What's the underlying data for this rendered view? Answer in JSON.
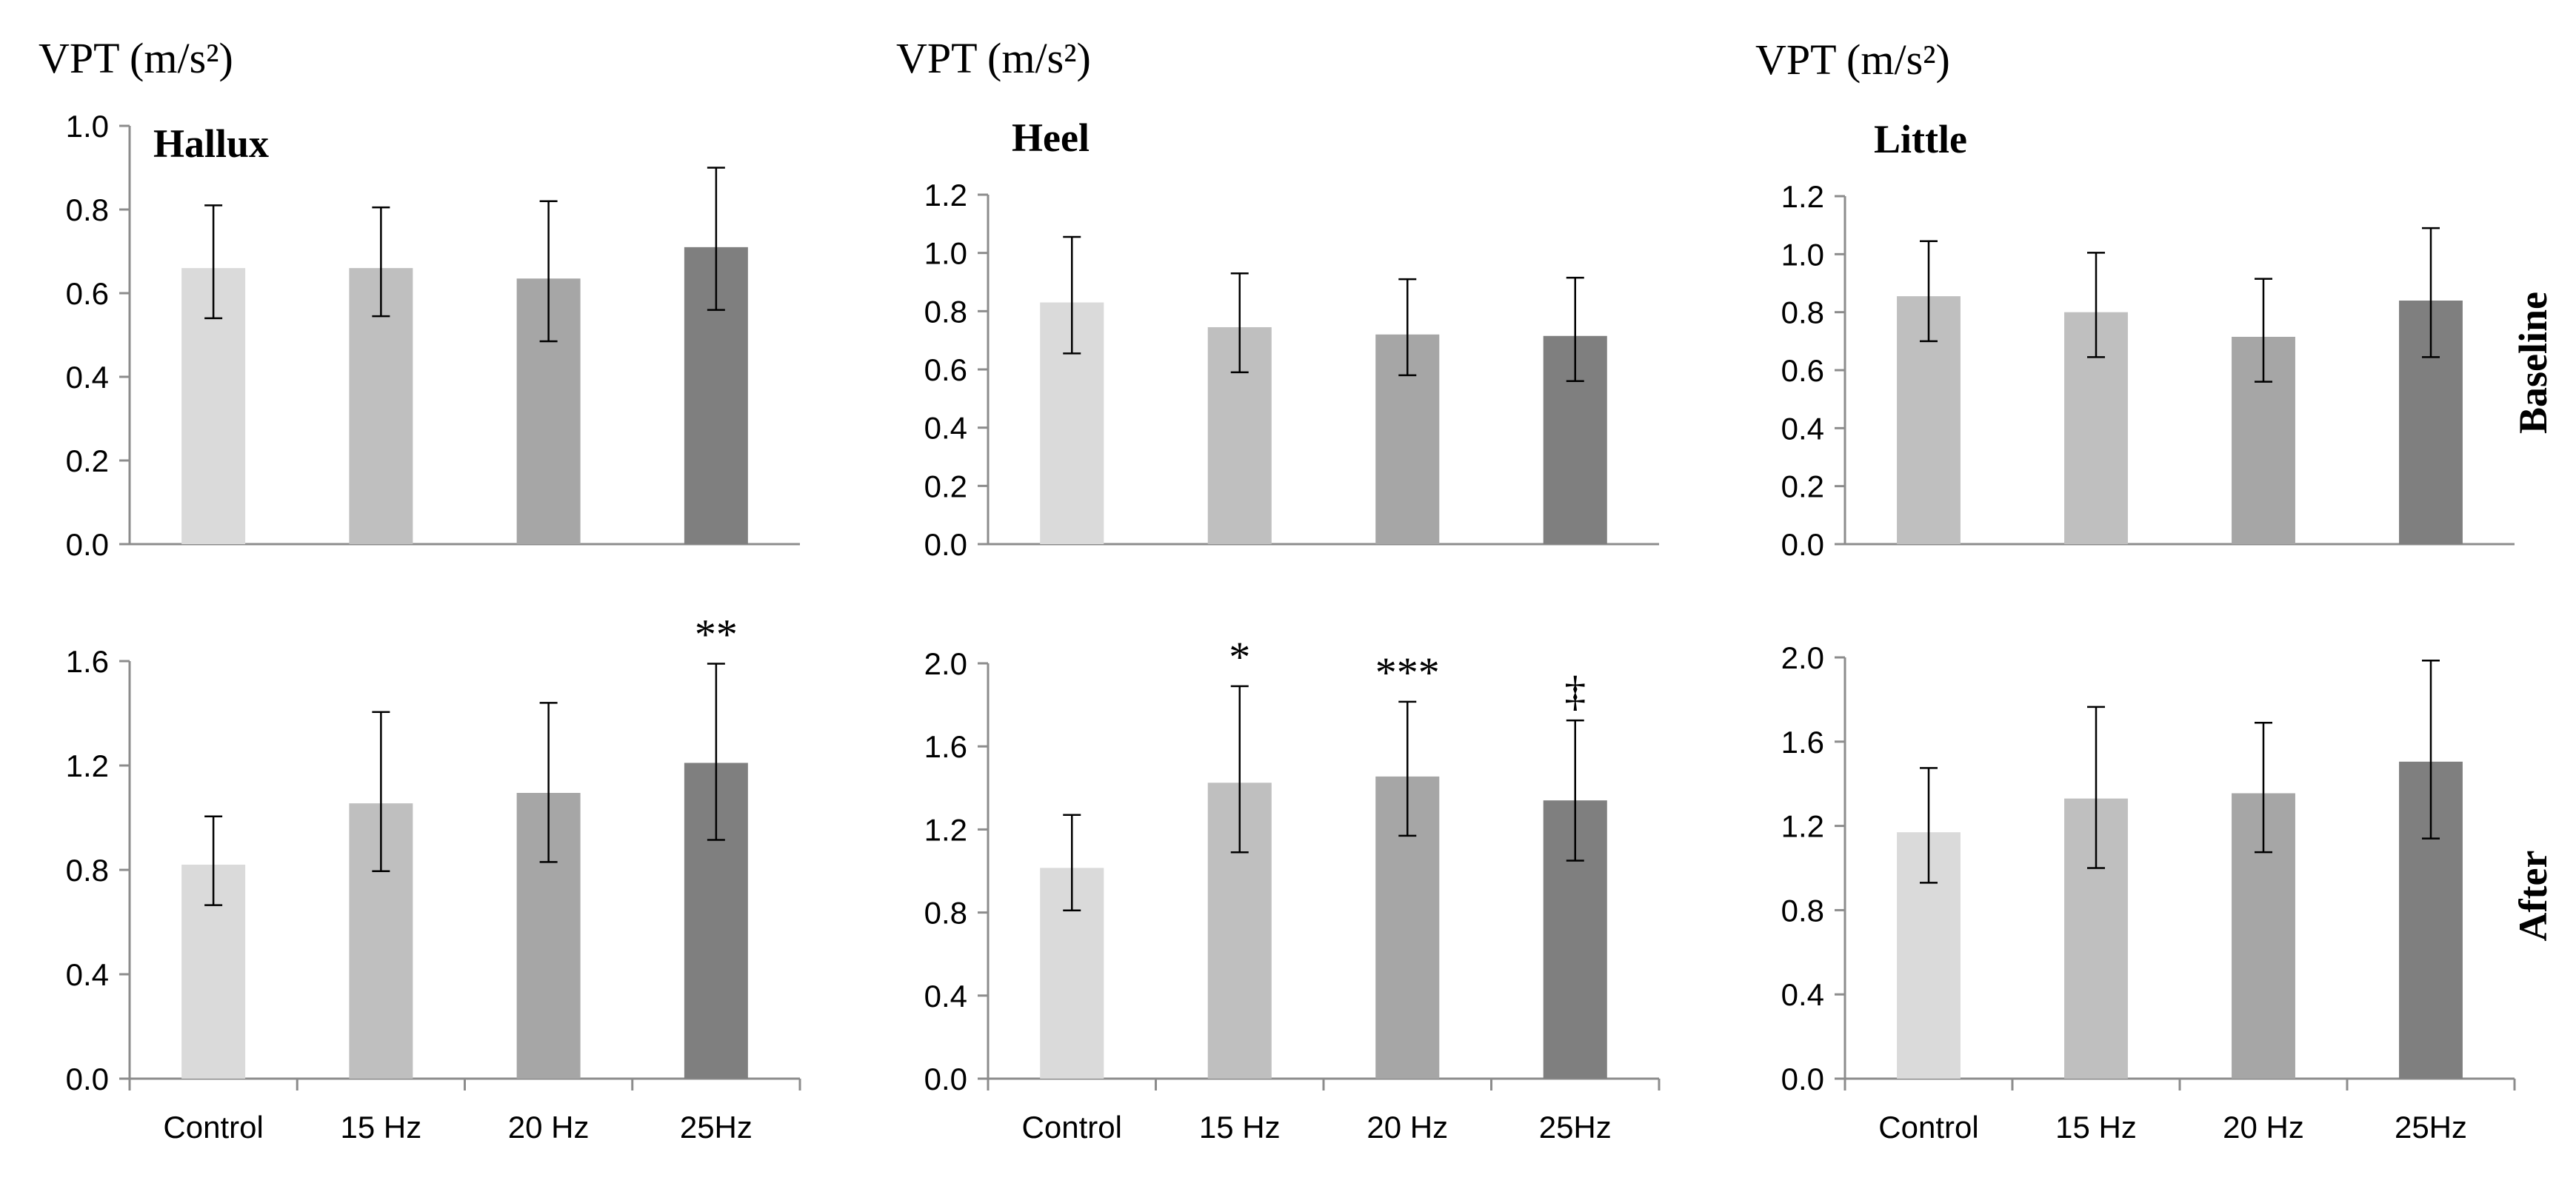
{
  "figure": {
    "row_labels": [
      "Baseline",
      "After"
    ]
  },
  "chart_data": [
    {
      "type": "bar",
      "row": "Baseline",
      "title": "Hallux",
      "ylabel": "VPT (m/s²)",
      "xlabel": "",
      "categories": [
        "Control",
        "15 Hz",
        "20 Hz",
        "25Hz"
      ],
      "show_category_labels": false,
      "values": [
        0.66,
        0.66,
        0.635,
        0.71
      ],
      "err_low": [
        0.54,
        0.545,
        0.485,
        0.56
      ],
      "err_high": [
        0.81,
        0.805,
        0.82,
        0.9
      ],
      "annotations": [
        "",
        "",
        "",
        ""
      ],
      "ylim": [
        0,
        1.0
      ],
      "yticks": [
        0,
        0.2,
        0.4,
        0.6,
        0.8,
        1.0
      ],
      "tick_format": 1,
      "colors": [
        "#dadada",
        "#bfbfbf",
        "#a6a6a6",
        "#7f7f7f"
      ]
    },
    {
      "type": "bar",
      "row": "Baseline",
      "title": "Heel",
      "ylabel": "VPT (m/s²)",
      "xlabel": "",
      "categories": [
        "Control",
        "15 Hz",
        "20 Hz",
        "25Hz"
      ],
      "show_category_labels": false,
      "values": [
        0.83,
        0.745,
        0.72,
        0.715
      ],
      "err_low": [
        0.655,
        0.59,
        0.58,
        0.56
      ],
      "err_high": [
        1.055,
        0.93,
        0.91,
        0.915
      ],
      "annotations": [
        "",
        "",
        "",
        ""
      ],
      "ylim": [
        0,
        1.2
      ],
      "yticks": [
        0,
        0.2,
        0.4,
        0.6,
        0.8,
        1.0,
        1.2
      ],
      "tick_format": 1,
      "colors": [
        "#dadada",
        "#bfbfbf",
        "#a6a6a6",
        "#7f7f7f"
      ]
    },
    {
      "type": "bar",
      "row": "Baseline",
      "title": "Little",
      "ylabel": "VPT (m/s²)",
      "xlabel": "",
      "categories": [
        "Control",
        "15 Hz",
        "20 Hz",
        "25Hz"
      ],
      "show_category_labels": false,
      "values": [
        0.855,
        0.8,
        0.715,
        0.84
      ],
      "err_low": [
        0.7,
        0.645,
        0.56,
        0.645
      ],
      "err_high": [
        1.045,
        1.005,
        0.915,
        1.09
      ],
      "annotations": [
        "",
        "",
        "",
        ""
      ],
      "ylim": [
        0,
        1.2
      ],
      "yticks": [
        0,
        0.2,
        0.4,
        0.6,
        0.8,
        1.0,
        1.2
      ],
      "tick_format": 1,
      "colors": [
        "#bfbfbf",
        "#bfbfbf",
        "#a6a6a6",
        "#7f7f7f"
      ]
    },
    {
      "type": "bar",
      "row": "After",
      "title": "",
      "ylabel": "",
      "xlabel": "",
      "categories": [
        "Control",
        "15 Hz",
        "20 Hz",
        "25Hz"
      ],
      "show_category_labels": true,
      "values": [
        0.82,
        1.055,
        1.095,
        1.21
      ],
      "err_low": [
        0.665,
        0.795,
        0.83,
        0.915
      ],
      "err_high": [
        1.005,
        1.405,
        1.44,
        1.59
      ],
      "annotations": [
        "",
        "",
        "",
        "**"
      ],
      "ylim": [
        0,
        1.6
      ],
      "yticks": [
        0,
        0.4,
        0.8,
        1.2,
        1.6
      ],
      "tick_format": 1,
      "colors": [
        "#dadada",
        "#bfbfbf",
        "#a6a6a6",
        "#7f7f7f"
      ]
    },
    {
      "type": "bar",
      "row": "After",
      "title": "",
      "ylabel": "",
      "xlabel": "",
      "categories": [
        "Control",
        "15 Hz",
        "20 Hz",
        "25Hz"
      ],
      "show_category_labels": true,
      "values": [
        1.015,
        1.425,
        1.455,
        1.34
      ],
      "err_low": [
        0.81,
        1.09,
        1.17,
        1.05
      ],
      "err_high": [
        1.27,
        1.89,
        1.815,
        1.725
      ],
      "annotations": [
        "",
        "*",
        "***",
        "‡"
      ],
      "ylim": [
        0,
        2.0
      ],
      "yticks": [
        0,
        0.4,
        0.8,
        1.2,
        1.6,
        2.0
      ],
      "tick_format": 1,
      "colors": [
        "#dadada",
        "#bfbfbf",
        "#a6a6a6",
        "#7f7f7f"
      ]
    },
    {
      "type": "bar",
      "row": "After",
      "title": "",
      "ylabel": "",
      "xlabel": "",
      "categories": [
        "Control",
        "15 Hz",
        "20 Hz",
        "25Hz"
      ],
      "show_category_labels": true,
      "values": [
        1.17,
        1.33,
        1.355,
        1.505
      ],
      "err_low": [
        0.93,
        1.0,
        1.075,
        1.14
      ],
      "err_high": [
        1.475,
        1.765,
        1.69,
        1.985
      ],
      "annotations": [
        "",
        "",
        "",
        ""
      ],
      "ylim": [
        0,
        2.0
      ],
      "yticks": [
        0,
        0.4,
        0.8,
        1.2,
        1.6,
        2.0
      ],
      "tick_format": 1,
      "colors": [
        "#dadada",
        "#bfbfbf",
        "#a6a6a6",
        "#7f7f7f"
      ]
    }
  ]
}
